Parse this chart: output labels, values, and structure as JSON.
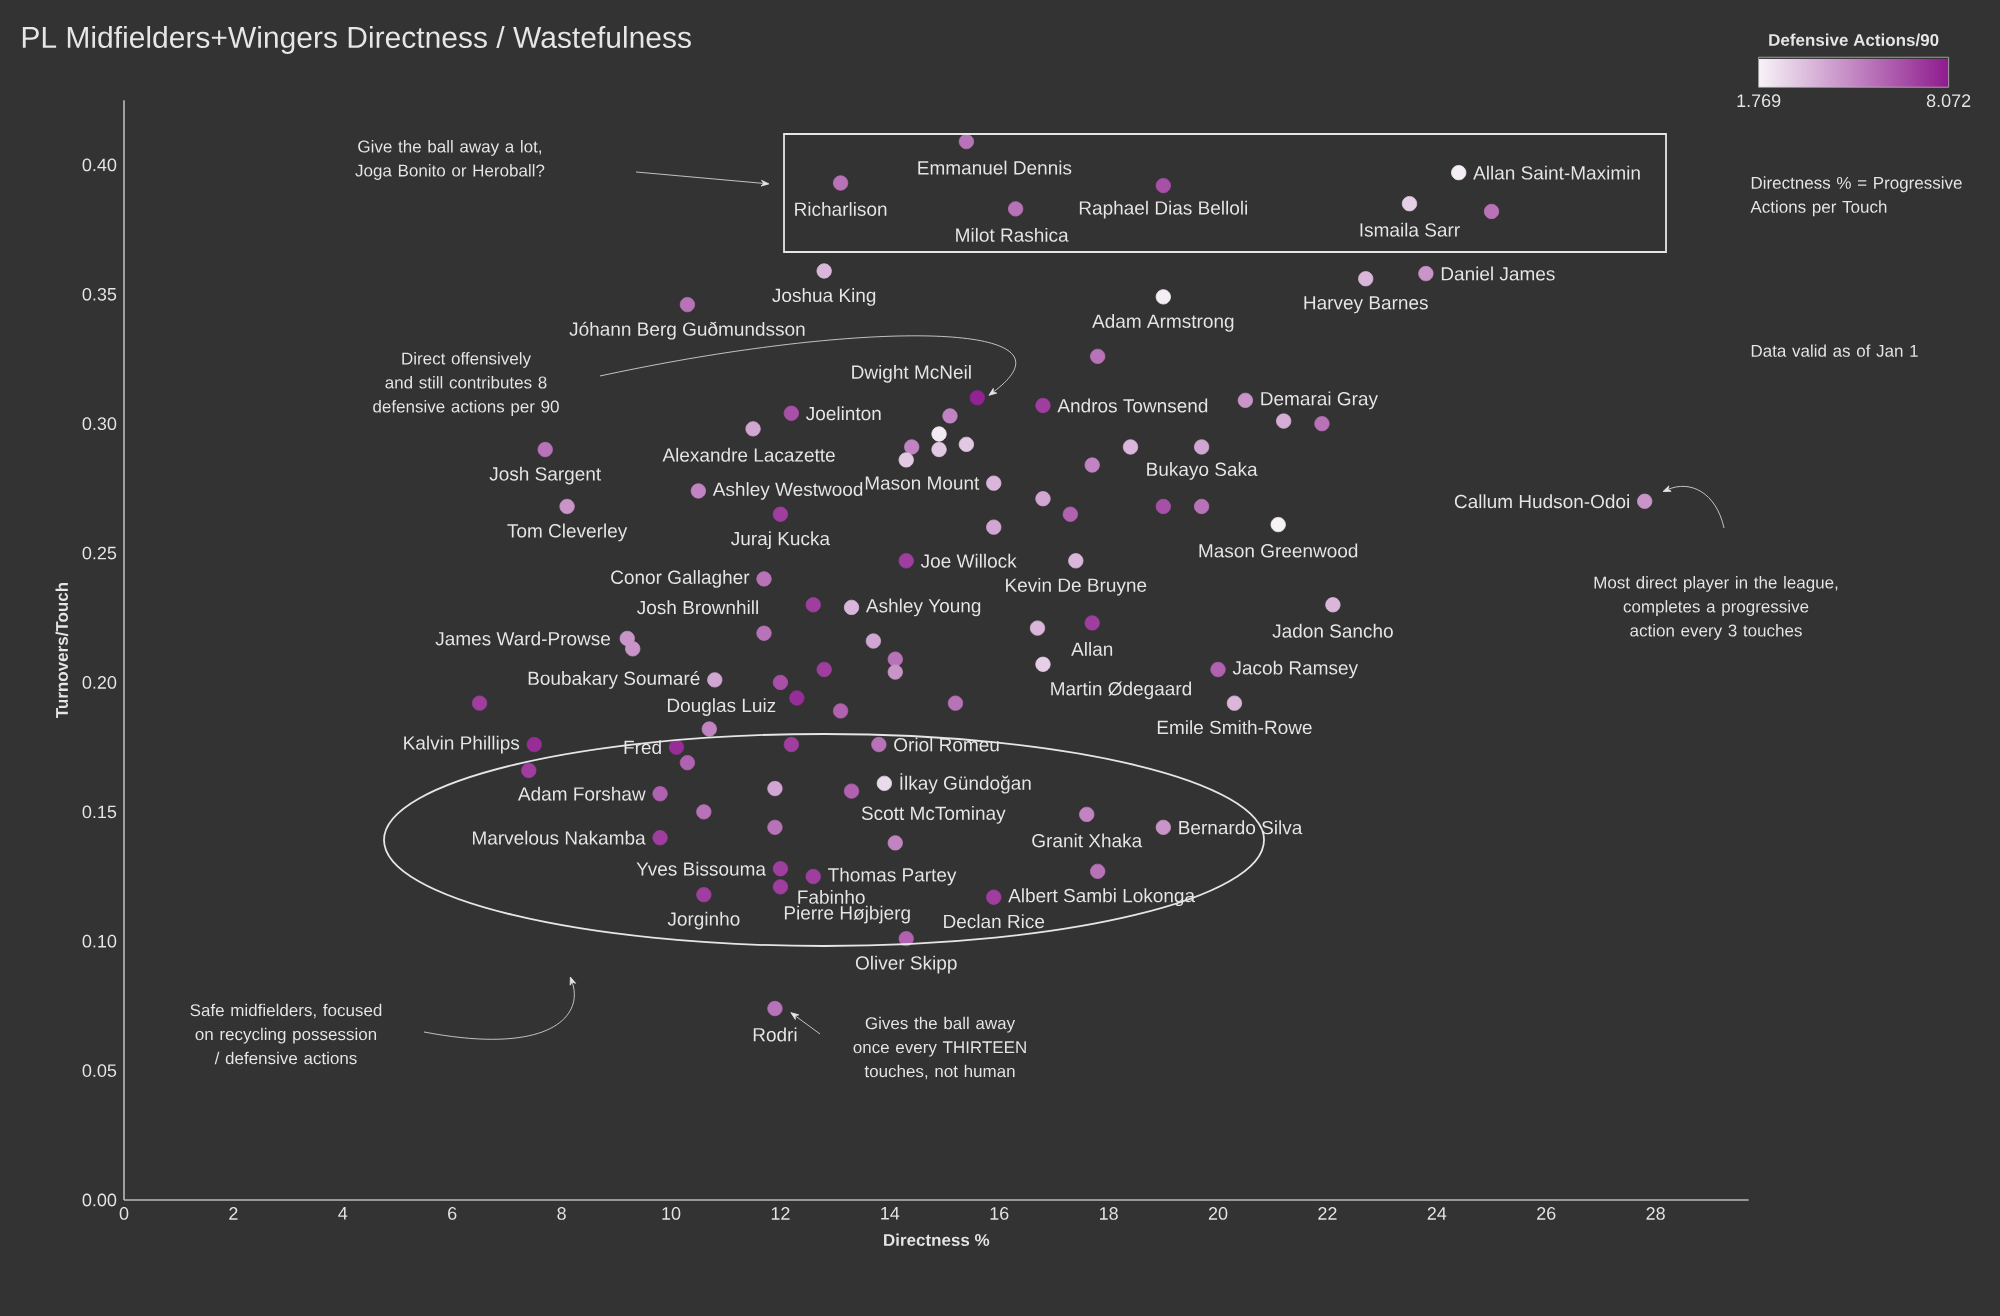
{
  "chart_data": {
    "type": "scatter",
    "title": "PL Midfielders+Wingers Directness / Wastefulness",
    "xlabel": "Directness %",
    "ylabel": "Turnovers/Touch",
    "clabel": "Defensive Actions/90",
    "clim": [
      1.769,
      8.072
    ],
    "cticks": [
      1.769,
      8.072
    ],
    "marker": "circle",
    "xlim": [
      0,
      29.7
    ],
    "ylim": [
      0,
      0.425
    ],
    "xticks": [
      0,
      2,
      4,
      6,
      8,
      10,
      12,
      14,
      16,
      18,
      20,
      22,
      24,
      26,
      28
    ],
    "yticks": [
      {
        "value": 0,
        "label": "0.00"
      },
      {
        "value": 0.05,
        "label": "0.05"
      },
      {
        "value": 0.1,
        "label": "0.10"
      },
      {
        "value": 0.15,
        "label": "0.15"
      },
      {
        "value": 0.2,
        "label": "0.20"
      },
      {
        "value": 0.25,
        "label": "0.25"
      },
      {
        "value": 0.3,
        "label": "0.30"
      },
      {
        "value": 0.35,
        "label": "0.35"
      },
      {
        "value": 0.4,
        "label": "0.40"
      }
    ],
    "x": [
      15.4,
      13.1,
      19.0,
      16.3,
      24.4,
      23.5,
      25.0,
      12.8,
      23.8,
      22.7,
      19.0,
      10.3,
      17.8,
      15.6,
      15.1,
      12.2,
      16.8,
      20.5,
      21.2,
      21.9,
      11.5,
      14.9,
      14.9,
      15.4,
      14.4,
      14.3,
      7.7,
      8.1,
      10.5,
      12.0,
      15.9,
      15.9,
      14.3,
      11.7,
      13.3,
      12.6,
      11.7,
      9.2,
      9.3,
      13.7,
      14.1,
      14.1,
      10.8,
      12.0,
      12.8,
      12.3,
      13.1,
      15.2,
      6.5,
      10.7,
      7.5,
      7.4,
      10.1,
      10.3,
      12.2,
      13.8,
      18.4,
      19.7,
      17.7,
      16.8,
      17.3,
      19.0,
      19.7,
      21.1,
      27.8,
      17.4,
      22.1,
      16.7,
      17.7,
      16.8,
      20.0,
      20.3,
      9.8,
      11.9,
      13.3,
      13.9,
      10.6,
      11.9,
      9.8,
      14.1,
      17.6,
      19.0,
      12.0,
      12.6,
      12.0,
      10.6,
      15.9,
      17.8,
      14.3,
      11.9
    ],
    "values": [
      0.409,
      0.393,
      0.392,
      0.383,
      0.397,
      0.385,
      0.382,
      0.359,
      0.358,
      0.356,
      0.349,
      0.346,
      0.326,
      0.31,
      0.303,
      0.304,
      0.307,
      0.309,
      0.301,
      0.3,
      0.298,
      0.296,
      0.29,
      0.292,
      0.291,
      0.286,
      0.29,
      0.268,
      0.274,
      0.265,
      0.277,
      0.26,
      0.247,
      0.24,
      0.229,
      0.23,
      0.219,
      0.217,
      0.213,
      0.216,
      0.209,
      0.204,
      0.201,
      0.2,
      0.205,
      0.194,
      0.189,
      0.192,
      0.192,
      0.182,
      0.176,
      0.166,
      0.175,
      0.169,
      0.176,
      0.176,
      0.291,
      0.291,
      0.284,
      0.271,
      0.265,
      0.268,
      0.268,
      0.261,
      0.27,
      0.247,
      0.23,
      0.221,
      0.223,
      0.207,
      0.205,
      0.192,
      0.157,
      0.159,
      0.158,
      0.161,
      0.15,
      0.144,
      0.14,
      0.138,
      0.149,
      0.144,
      0.128,
      0.125,
      0.121,
      0.118,
      0.117,
      0.127,
      0.101,
      0.074
    ],
    "cvalues": [
      5.5,
      5.5,
      6.5,
      5.5,
      1.9,
      2.8,
      5.5,
      3.5,
      4.5,
      3.5,
      1.9,
      5.5,
      5.5,
      7.8,
      5.0,
      6.5,
      7.0,
      4.5,
      3.8,
      5.5,
      4.0,
      2.0,
      3.0,
      3.0,
      5.0,
      3.0,
      5.5,
      4.5,
      5.0,
      7.0,
      3.5,
      4.0,
      7.0,
      5.5,
      3.5,
      7.0,
      5.5,
      4.5,
      4.5,
      4.0,
      5.5,
      4.5,
      4.0,
      6.5,
      7.0,
      7.5,
      6.0,
      5.5,
      7.0,
      5.0,
      7.5,
      7.0,
      7.5,
      6.0,
      7.0,
      5.5,
      3.5,
      4.0,
      5.0,
      4.0,
      6.0,
      6.5,
      5.5,
      1.8,
      4.5,
      3.5,
      3.5,
      3.5,
      7.0,
      2.8,
      6.0,
      3.5,
      6.0,
      4.0,
      6.0,
      2.5,
      5.5,
      5.5,
      7.0,
      5.0,
      5.0,
      4.5,
      7.0,
      7.0,
      7.0,
      7.0,
      7.0,
      5.5,
      6.0,
      5.5
    ],
    "annotations": [
      "Give the ball away a lot, Joga Bonito or Heroball?",
      "Direct offensively and still contributes 8 defensive actions per 90",
      "Most direct player in the league, completes a progressive action every 3 touches",
      "Safe midfielders, focused on recycling possession / defensive actions",
      "Gives the ball away once every THIRTEEN touches, not human",
      "Directness % = Progressive Actions per Touch",
      "Data valid as of Jan 1",
      {
        "text": "Emmanuel Dennis",
        "x": 15.4,
        "y": 0.409
      },
      {
        "text": "Richarlison",
        "x": 13.1,
        "y": 0.393
      },
      {
        "text": "Raphael Dias Belloli",
        "x": 19.0,
        "y": 0.392
      },
      {
        "text": "Milot Rashica",
        "x": 16.3,
        "y": 0.383
      },
      {
        "text": "Allan Saint-Maximin",
        "x": 24.4,
        "y": 0.397
      },
      {
        "text": "Ismaila Sarr",
        "x": 23.5,
        "y": 0.385
      },
      {
        "text": "Joshua King",
        "x": 12.8,
        "y": 0.359
      },
      {
        "text": "Daniel James",
        "x": 23.8,
        "y": 0.358
      },
      {
        "text": "Harvey Barnes",
        "x": 22.7,
        "y": 0.356
      },
      {
        "text": "Adam Armstrong",
        "x": 19.0,
        "y": 0.349
      },
      {
        "text": "Jóhann Berg Guðmundsson",
        "x": 10.3,
        "y": 0.346
      },
      {
        "text": "Dwight McNeil",
        "x": 15.6,
        "y": 0.31
      },
      {
        "text": "Joelinton",
        "x": 12.2,
        "y": 0.304
      },
      {
        "text": "Andros Townsend",
        "x": 16.8,
        "y": 0.307
      },
      {
        "text": "Demarai Gray",
        "x": 20.5,
        "y": 0.309
      },
      {
        "text": "Alexandre Lacazette",
        "x": 11.5,
        "y": 0.298
      },
      {
        "text": "Josh Sargent",
        "x": 7.7,
        "y": 0.29
      },
      {
        "text": "Tom Cleverley",
        "x": 8.1,
        "y": 0.268
      },
      {
        "text": "Ashley Westwood",
        "x": 10.5,
        "y": 0.274
      },
      {
        "text": "Juraj Kucka",
        "x": 12.0,
        "y": 0.265
      },
      {
        "text": "Mason Mount",
        "x": 15.9,
        "y": 0.277
      },
      {
        "text": "Joe Willock",
        "x": 14.3,
        "y": 0.247
      },
      {
        "text": "Bukayo Saka",
        "x": 19.7,
        "y": 0.291
      },
      {
        "text": "Conor Gallagher",
        "x": 11.7,
        "y": 0.24
      },
      {
        "text": "Ashley Young",
        "x": 13.3,
        "y": 0.229
      },
      {
        "text": "Josh Brownhill",
        "x": 11.7,
        "y": 0.219
      },
      {
        "text": "Kevin De Bruyne",
        "x": 17.4,
        "y": 0.247
      },
      {
        "text": "Mason Greenwood",
        "x": 21.1,
        "y": 0.261
      },
      {
        "text": "Callum Hudson-Odoi",
        "x": 27.8,
        "y": 0.27
      },
      {
        "text": "Jadon Sancho",
        "x": 22.1,
        "y": 0.23
      },
      {
        "text": "Allan",
        "x": 17.7,
        "y": 0.223
      },
      {
        "text": "James Ward-Prowse",
        "x": 9.2,
        "y": 0.217
      },
      {
        "text": "Jacob Ramsey",
        "x": 20.0,
        "y": 0.205
      },
      {
        "text": "Martin Ødegaard",
        "x": 16.8,
        "y": 0.207
      },
      {
        "text": "Boubakary Soumaré",
        "x": 10.8,
        "y": 0.201
      },
      {
        "text": "Douglas Luiz",
        "x": 10.7,
        "y": 0.182
      },
      {
        "text": "Emile Smith-Rowe",
        "x": 20.3,
        "y": 0.192
      },
      {
        "text": "Kalvin Phillips",
        "x": 7.5,
        "y": 0.176
      },
      {
        "text": "Fred",
        "x": 10.1,
        "y": 0.175
      },
      {
        "text": "Oriol Romeu",
        "x": 13.8,
        "y": 0.176
      },
      {
        "text": "Adam Forshaw",
        "x": 9.8,
        "y": 0.157
      },
      {
        "text": "İlkay Gündoğan",
        "x": 13.9,
        "y": 0.161
      },
      {
        "text": "Scott McTominay",
        "x": 14.1,
        "y": 0.138
      },
      {
        "text": "Granit Xhaka",
        "x": 17.6,
        "y": 0.149
      },
      {
        "text": "Bernardo Silva",
        "x": 19.0,
        "y": 0.144
      },
      {
        "text": "Marvelous Nakamba",
        "x": 9.8,
        "y": 0.14
      },
      {
        "text": "Yves Bissouma",
        "x": 12.0,
        "y": 0.128
      },
      {
        "text": "Thomas Partey",
        "x": 12.6,
        "y": 0.125
      },
      {
        "text": "Fabinho",
        "x": 12.0,
        "y": 0.121
      },
      {
        "text": "Pierre Højbjerg",
        "x": 12.6,
        "y": 0.125
      },
      {
        "text": "Jorginho",
        "x": 10.6,
        "y": 0.118
      },
      {
        "text": "Albert Sambi Lokonga",
        "x": 15.9,
        "y": 0.117
      },
      {
        "text": "Declan Rice",
        "x": 15.9,
        "y": 0.117
      },
      {
        "text": "Oliver Skipp",
        "x": 14.3,
        "y": 0.101
      },
      {
        "text": "Rodri",
        "x": 11.9,
        "y": 0.074
      }
    ]
  }
}
